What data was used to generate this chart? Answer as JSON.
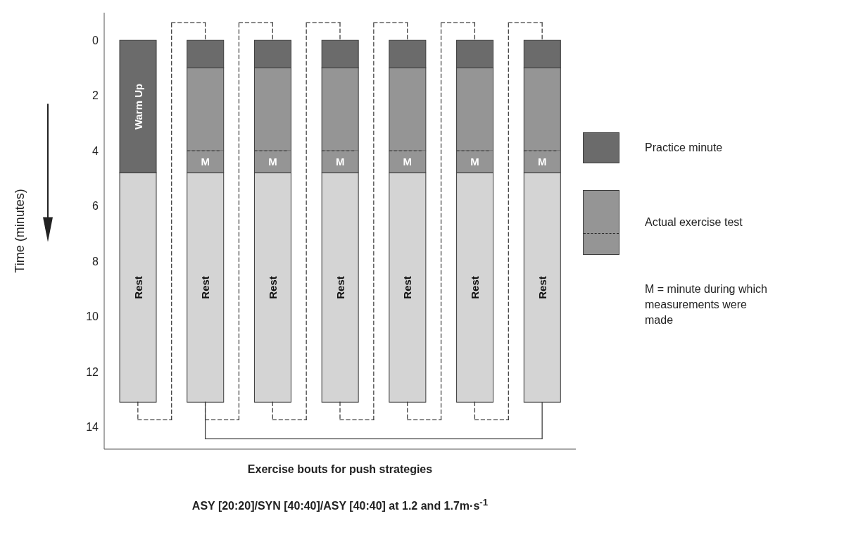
{
  "chart_data": {
    "type": "bar",
    "stacked": true,
    "ylabel": "Time (minutes)",
    "xlabel": "Exercise bouts for push strategies",
    "categories": [
      null,
      null,
      null,
      null,
      null,
      null,
      null
    ],
    "series": [
      {
        "name": "Practice minute",
        "color": "#6b6b6b",
        "values": [
          4.8,
          1,
          1,
          1,
          1,
          1,
          1
        ],
        "value_labels": [
          "Warm Up",
          null,
          null,
          null,
          null,
          null,
          null
        ]
      },
      {
        "name": "Actual exercise test",
        "color": "#959595",
        "values": [
          null,
          3,
          3,
          3,
          3,
          3,
          3
        ]
      },
      {
        "color": "#959595",
        "values": [
          null,
          0.8,
          0.8,
          0.8,
          0.8,
          0.8,
          0.8
        ],
        "value_labels": [
          null,
          "M",
          "M",
          "M",
          "M",
          "M",
          "M"
        ]
      },
      {
        "color": "#d4d4d4",
        "values": [
          8.3,
          8.3,
          8.3,
          8.3,
          8.3,
          8.3,
          8.3
        ],
        "value_labels": [
          "Rest",
          "Rest",
          "Rest",
          "Rest",
          "Rest",
          "Rest",
          "Rest"
        ]
      }
    ],
    "ylim": [
      14.8,
      -1
    ],
    "yticks": [
      0,
      2,
      4,
      6,
      8,
      10,
      12,
      14
    ],
    "grid": false,
    "legend": "right",
    "tick_labels": "y",
    "annotations": [
      "M = minute during which measurements were made",
      "ASY [20:20]/SYN [40:40]/ASY [40:40] at 1.2 and 1.7m·s$^{-1}$"
    ]
  }
}
